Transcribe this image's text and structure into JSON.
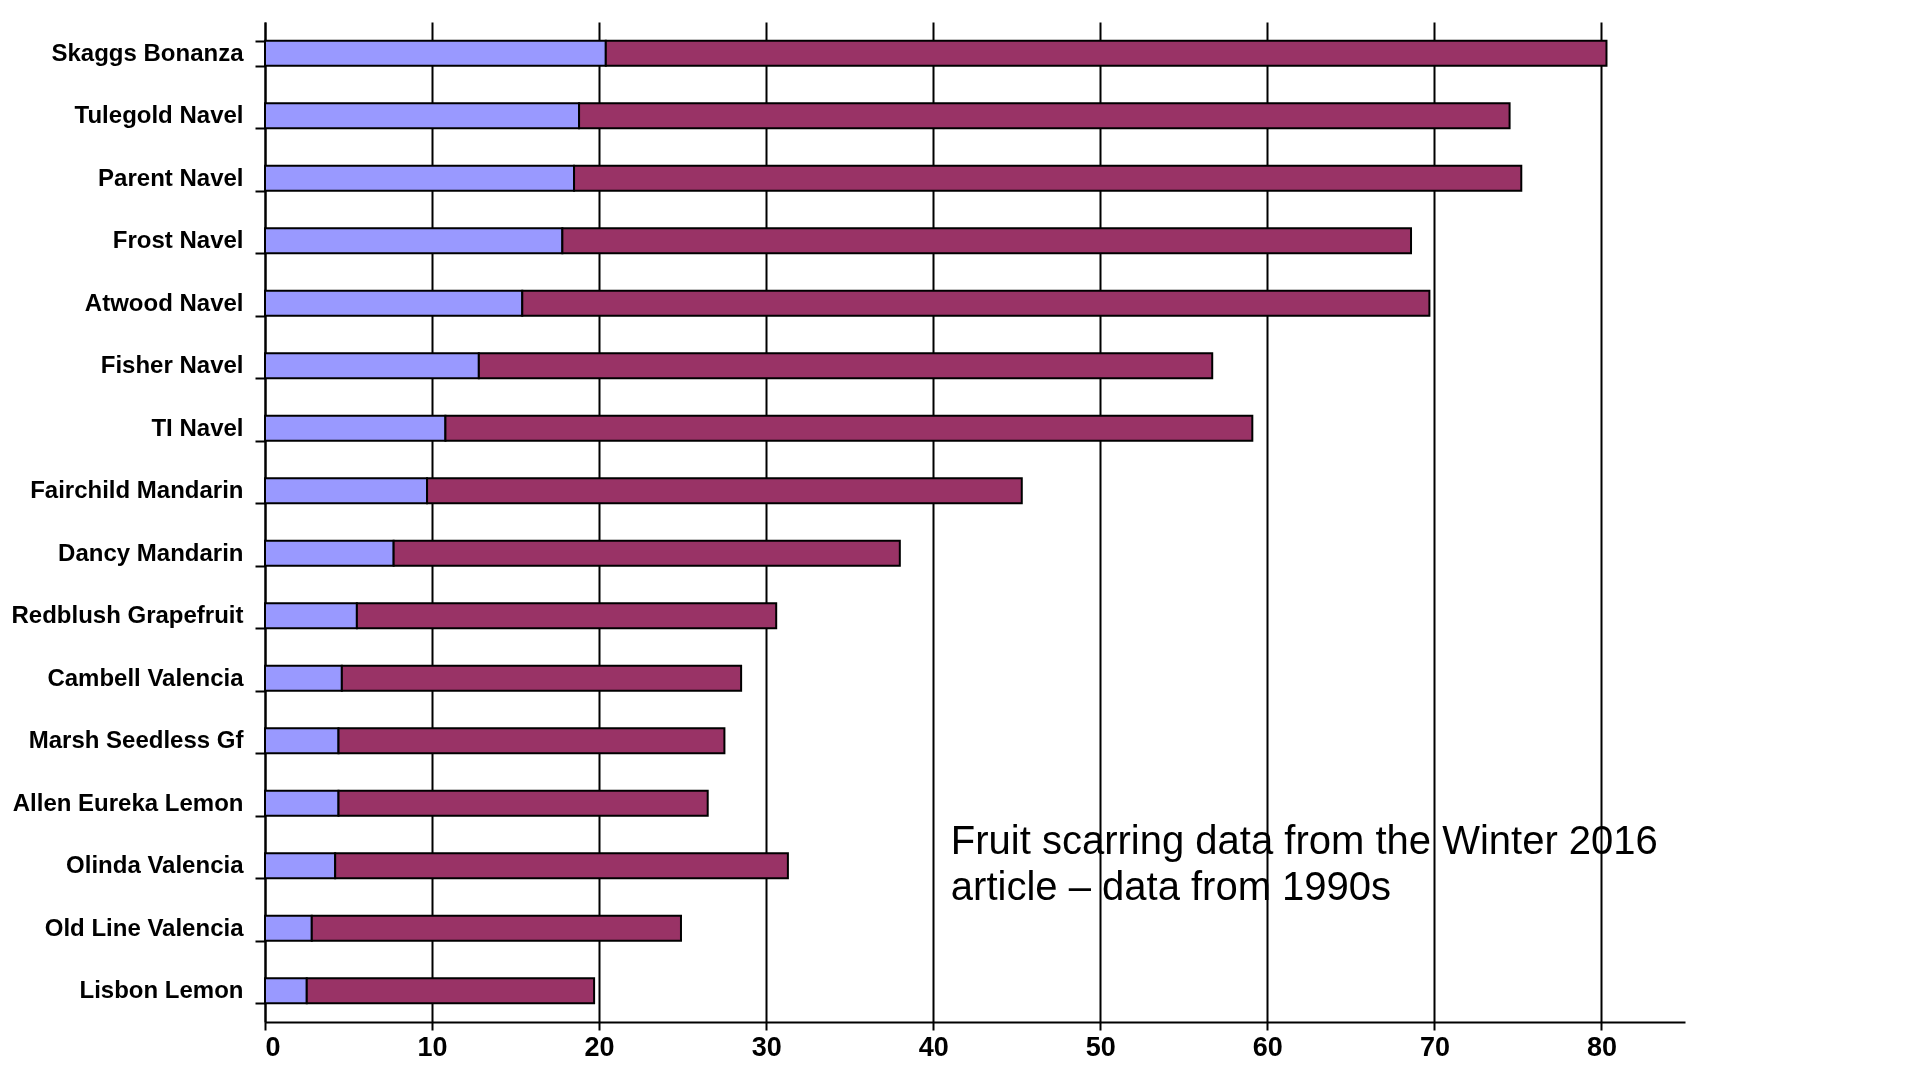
{
  "chart_data": {
    "type": "bar",
    "orientation": "horizontal",
    "stacked": true,
    "categories": [
      "Skaggs Bonanza",
      "Tulegold Navel",
      "Parent Navel",
      "Frost Navel",
      "Atwood Navel",
      "Fisher Navel",
      "TI Navel",
      "Fairchild Mandarin",
      "Dancy Mandarin",
      "Redblush Grapefruit",
      "Cambell Valencia",
      "Marsh Seedless Gf",
      "Allen Eureka Lemon",
      "Olinda Valencia",
      "Old Line Valencia",
      "Lisbon Lemon"
    ],
    "series": [
      {
        "color": "#9999ff",
        "values": [
          20.4,
          18.8,
          18.5,
          17.8,
          15.4,
          12.8,
          10.8,
          9.7,
          7.7,
          5.5,
          4.6,
          4.4,
          4.4,
          4.2,
          2.8,
          2.5
        ]
      },
      {
        "color": "#993366",
        "values": [
          59.9,
          55.7,
          56.7,
          50.8,
          54.3,
          43.9,
          48.3,
          35.6,
          30.3,
          25.1,
          23.9,
          23.1,
          22.1,
          27.1,
          22.1,
          17.2
        ]
      }
    ],
    "xlim": [
      0,
      85
    ],
    "xticks": [
      0,
      10,
      20,
      30,
      40,
      50,
      60,
      70,
      80
    ],
    "grid": "x",
    "legend": false,
    "annotations": [
      "Fruit scarring data from the Winter 2016\narticle – data from 1990s"
    ]
  }
}
